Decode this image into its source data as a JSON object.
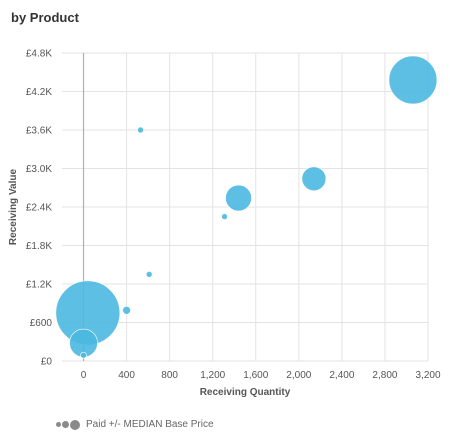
{
  "title": "by Product",
  "chart_data": {
    "type": "scatter",
    "xlabel": "Receiving Quantity",
    "ylabel": "Receiving Value",
    "xlim": [
      -200,
      3200
    ],
    "ylim": [
      0,
      4800
    ],
    "x_ticks": [
      0,
      400,
      800,
      1200,
      1600,
      2000,
      2400,
      2800,
      3200
    ],
    "x_tick_labels": [
      "0",
      "400",
      "800",
      "1,200",
      "1,600",
      "2,000",
      "2,400",
      "2,800",
      "3,200"
    ],
    "y_ticks": [
      0,
      600,
      1200,
      1800,
      2400,
      3000,
      3600,
      4200,
      4800
    ],
    "y_tick_labels": [
      "£0",
      "£600",
      "£1.2K",
      "£1.8K",
      "£2.4K",
      "£3.0K",
      "£3.6K",
      "£4.2K",
      "£4.8K"
    ],
    "grid": true,
    "bubble_color": "#4ab8e0",
    "points": [
      {
        "x": 3060,
        "y": 4380,
        "size": 24
      },
      {
        "x": 2140,
        "y": 2840,
        "size": 12
      },
      {
        "x": 1440,
        "y": 2540,
        "size": 13
      },
      {
        "x": 1310,
        "y": 2250,
        "size": 3
      },
      {
        "x": 530,
        "y": 3600,
        "size": 3
      },
      {
        "x": 610,
        "y": 1350,
        "size": 3
      },
      {
        "x": 400,
        "y": 790,
        "size": 4
      },
      {
        "x": 40,
        "y": 750,
        "size": 32
      },
      {
        "x": 0,
        "y": 280,
        "size": 14
      },
      {
        "x": 0,
        "y": 90,
        "size": 3
      }
    ],
    "legend": {
      "label": "Paid +/- MEDIAN Base Price",
      "placement": "bottom-left"
    }
  }
}
